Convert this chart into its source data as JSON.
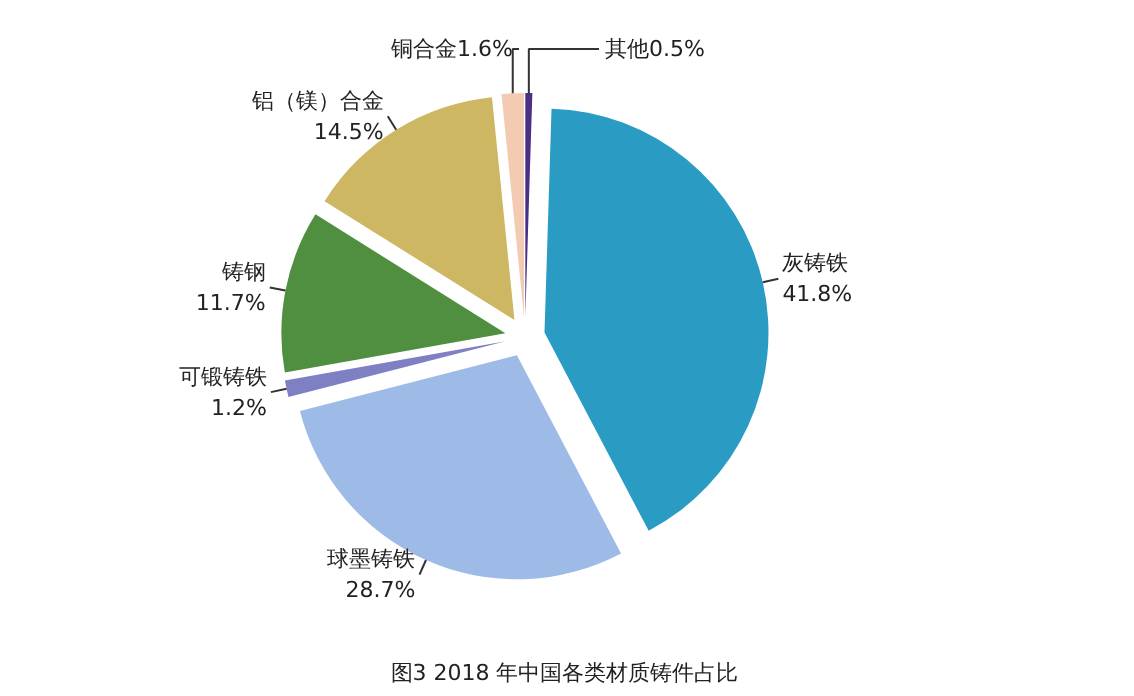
{
  "chart_data": {
    "type": "pie",
    "title": "图3  2018 年中国各类材质铸件占比",
    "categories": [
      "其他",
      "灰铸铁",
      "球墨铸铁",
      "可锻铸铁",
      "铸钢",
      "铝（镁）合金",
      "铜合金"
    ],
    "values": [
      0.5,
      41.8,
      28.7,
      1.2,
      11.7,
      14.5,
      1.6
    ],
    "value_labels": [
      "0.5%",
      "41.8%",
      "28.7%",
      "1.2%",
      "11.7%",
      "14.5%",
      "1.6%"
    ],
    "colors": [
      "#4b2f86",
      "#2a9cc4",
      "#9dbbe6",
      "#7f80c4",
      "#4f8f3f",
      "#cdb762",
      "#f3cbb2"
    ]
  }
}
